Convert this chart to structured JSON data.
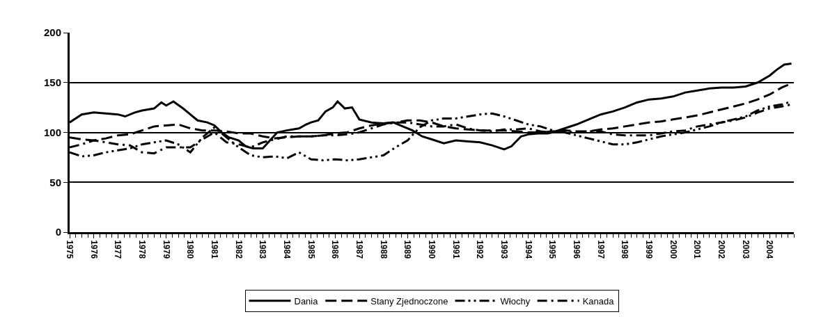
{
  "chart_data": {
    "type": "line",
    "xlim": [
      1975,
      2005
    ],
    "xticks": [
      1975,
      1976,
      1977,
      1978,
      1979,
      1980,
      1981,
      1982,
      1983,
      1984,
      1985,
      1986,
      1987,
      1988,
      1989,
      1990,
      1991,
      1992,
      1993,
      1994,
      1995,
      1996,
      1997,
      1998,
      1999,
      2000,
      2001,
      2002,
      2003,
      2004
    ],
    "ylim": [
      0,
      200
    ],
    "yticks": [
      0,
      50,
      100,
      150,
      200
    ],
    "grid": "y",
    "legend": "bottom",
    "series": [
      {
        "name": "Dania",
        "color": "#000000",
        "line_style": "solid",
        "x": [
          1975,
          1975.5,
          1976,
          1976.5,
          1977,
          1977.3,
          1977.7,
          1978,
          1978.5,
          1978.8,
          1979,
          1979.3,
          1979.7,
          1980,
          1980.3,
          1980.7,
          1981,
          1981.3,
          1981.6,
          1982,
          1982.3,
          1982.6,
          1983,
          1983.3,
          1983.6,
          1984,
          1984.5,
          1984.8,
          1985,
          1985.3,
          1985.6,
          1985.9,
          1986.1,
          1986.4,
          1986.7,
          1987,
          1987.5,
          1988,
          1988.4,
          1988.8,
          1989.2,
          1989.6,
          1990,
          1990.5,
          1991,
          1991.5,
          1992,
          1992.5,
          1993,
          1993.3,
          1993.7,
          1994,
          1994.4,
          1994.8,
          1995,
          1995.5,
          1996,
          1996.5,
          1997,
          1997.5,
          1998,
          1998.5,
          1999,
          1999.5,
          2000,
          2000.5,
          2001,
          2001.5,
          2002,
          2002.5,
          2003,
          2003.5,
          2004,
          2004.3,
          2004.6,
          2004.9
        ],
        "values": [
          110,
          118,
          120,
          119,
          118,
          116,
          120,
          122,
          124,
          130,
          127,
          131,
          124,
          118,
          112,
          110,
          107,
          100,
          95,
          92,
          86,
          84,
          84,
          92,
          100,
          102,
          104,
          108,
          110,
          112,
          121,
          125,
          131,
          124,
          125,
          113,
          110,
          109,
          110,
          106,
          102,
          96,
          93,
          89,
          92,
          91,
          90,
          87,
          83,
          86,
          96,
          98,
          99,
          99,
          100,
          104,
          108,
          113,
          118,
          121,
          125,
          130,
          133,
          134,
          136,
          140,
          142,
          144,
          145,
          145,
          146,
          150,
          157,
          163,
          168,
          169
        ]
      },
      {
        "name": "Stany Zjednoczone",
        "color": "#000000",
        "line_style": "dashed",
        "x": [
          1975,
          1975.5,
          1976,
          1976.5,
          1977,
          1977.5,
          1978,
          1978.5,
          1979,
          1979.5,
          1980,
          1980.5,
          1981,
          1981.5,
          1982,
          1982.5,
          1983,
          1983.5,
          1984,
          1984.5,
          1985,
          1985.5,
          1986,
          1986.5,
          1987,
          1987.5,
          1988,
          1988.5,
          1989,
          1989.5,
          1990,
          1990.5,
          1991,
          1991.5,
          1992,
          1992.5,
          1993,
          1993.5,
          1994,
          1994.5,
          1995,
          1995.5,
          1996,
          1996.5,
          1997,
          1997.5,
          1998,
          1998.5,
          1999,
          1999.5,
          2000,
          2000.5,
          2001,
          2001.5,
          2002,
          2002.5,
          2003,
          2003.5,
          2004,
          2004.5,
          2004.9
        ],
        "values": [
          95,
          93,
          92,
          94,
          97,
          98,
          102,
          106,
          107,
          108,
          104,
          102,
          102,
          101,
          99,
          99,
          96,
          94,
          95,
          96,
          96,
          97,
          99,
          100,
          104,
          107,
          109,
          110,
          112,
          112,
          110,
          106,
          104,
          103,
          102,
          102,
          102,
          101,
          100,
          100,
          101,
          102,
          101,
          101,
          103,
          104,
          106,
          108,
          110,
          111,
          113,
          115,
          117,
          120,
          123,
          126,
          129,
          133,
          138,
          145,
          149
        ]
      },
      {
        "name": "Włochy",
        "color": "#000000",
        "line_style": "dashdotdot",
        "x": [
          1975,
          1975.5,
          1976,
          1976.5,
          1977,
          1977.5,
          1978,
          1978.5,
          1979,
          1979.5,
          1980,
          1980.5,
          1981,
          1981.5,
          1982,
          1982.5,
          1983,
          1983.5,
          1984,
          1984.5,
          1985,
          1985.5,
          1986,
          1986.5,
          1987,
          1987.5,
          1988,
          1988.5,
          1989,
          1989.5,
          1990,
          1990.5,
          1991,
          1991.5,
          1992,
          1992.5,
          1993,
          1993.5,
          1994,
          1994.5,
          1995,
          1995.5,
          1996,
          1996.5,
          1997,
          1997.5,
          1998,
          1998.5,
          1999,
          1999.5,
          2000,
          2000.5,
          2001,
          2001.5,
          2002,
          2002.5,
          2003,
          2003.5,
          2004,
          2004.5,
          2004.9
        ],
        "values": [
          80,
          76,
          77,
          80,
          82,
          84,
          88,
          90,
          92,
          88,
          80,
          95,
          105,
          95,
          85,
          77,
          75,
          76,
          74,
          80,
          73,
          72,
          73,
          72,
          73,
          75,
          77,
          85,
          92,
          105,
          112,
          114,
          114,
          116,
          118,
          119,
          116,
          112,
          108,
          106,
          102,
          100,
          97,
          94,
          91,
          88,
          88,
          90,
          93,
          96,
          98,
          100,
          103,
          106,
          110,
          113,
          116,
          122,
          126,
          128,
          131
        ]
      },
      {
        "name": "Kanada",
        "color": "#000000",
        "line_style": "dashdot",
        "x": [
          1975,
          1975.5,
          1976,
          1976.5,
          1977,
          1977.5,
          1978,
          1978.5,
          1979,
          1979.5,
          1980,
          1980.5,
          1981,
          1981.5,
          1982,
          1982.5,
          1983,
          1983.5,
          1984,
          1984.5,
          1985,
          1985.5,
          1986,
          1986.5,
          1987,
          1987.5,
          1988,
          1988.5,
          1989,
          1989.5,
          1990,
          1990.5,
          1991,
          1991.5,
          1992,
          1992.5,
          1993,
          1993.5,
          1994,
          1994.5,
          1995,
          1995.5,
          1996,
          1996.5,
          1997,
          1997.5,
          1998,
          1998.5,
          1999,
          1999.5,
          2000,
          2000.5,
          2001,
          2001.5,
          2002,
          2002.5,
          2003,
          2003.5,
          2004,
          2004.5,
          2004.9
        ],
        "values": [
          85,
          88,
          92,
          90,
          88,
          87,
          80,
          79,
          85,
          85,
          85,
          93,
          100,
          90,
          88,
          85,
          90,
          93,
          96,
          96,
          96,
          97,
          97,
          98,
          100,
          104,
          108,
          110,
          110,
          108,
          106,
          106,
          108,
          104,
          102,
          101,
          103,
          103,
          104,
          101,
          100,
          101,
          100,
          101,
          101,
          98,
          97,
          97,
          97,
          99,
          101,
          102,
          106,
          108,
          110,
          112,
          115,
          120,
          124,
          126,
          128
        ]
      }
    ]
  }
}
